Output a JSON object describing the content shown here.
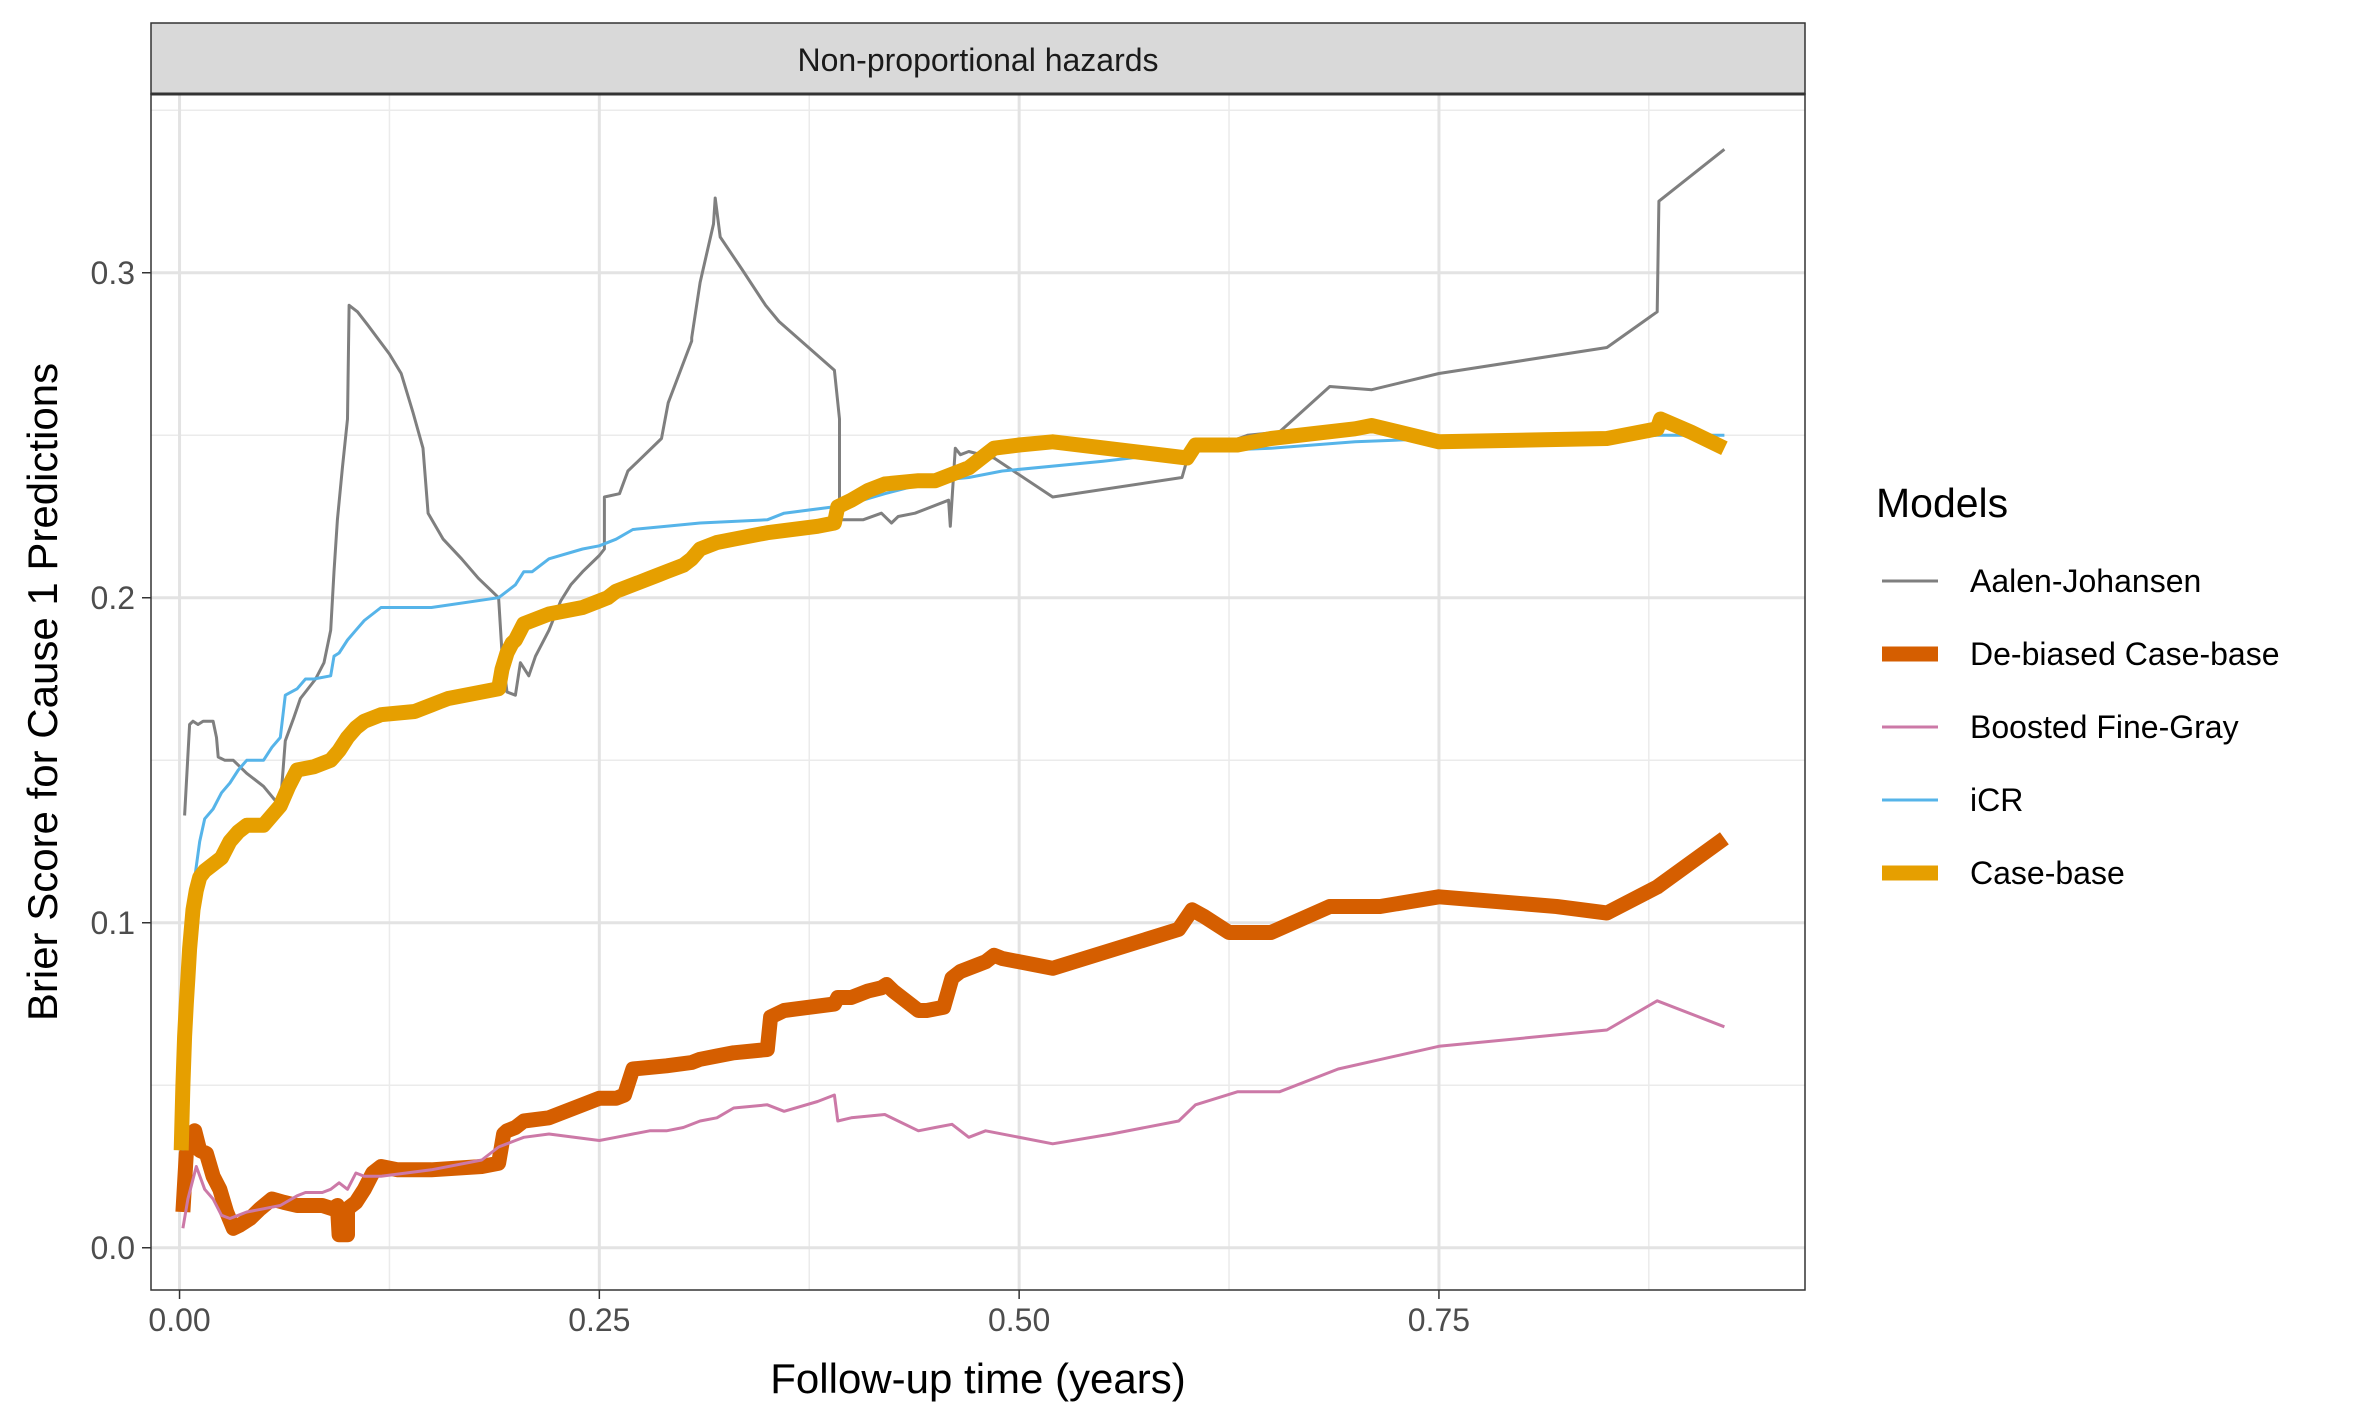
{
  "chart_data": {
    "type": "line",
    "facet_title": "Non-proportional hazards",
    "xlabel": "Follow-up time (years)",
    "ylabel": "Brier Score for Cause 1 Predictions",
    "xlim": [
      -0.017,
      0.968
    ],
    "ylim": [
      -0.013,
      0.355
    ],
    "x_ticks": [
      {
        "value": 0.0,
        "label": "0.00"
      },
      {
        "value": 0.25,
        "label": "0.25"
      },
      {
        "value": 0.5,
        "label": "0.50"
      },
      {
        "value": 0.75,
        "label": "0.75"
      }
    ],
    "y_ticks": [
      {
        "value": 0.0,
        "label": "0.0"
      },
      {
        "value": 0.1,
        "label": "0.1"
      },
      {
        "value": 0.2,
        "label": "0.2"
      },
      {
        "value": 0.3,
        "label": "0.3"
      }
    ],
    "grid": true,
    "legend": {
      "title": "Models",
      "position": "right"
    },
    "series": [
      {
        "name": "Aalen-Johansen",
        "color": "#7f7f7f",
        "width": 3,
        "x": [
          0.003,
          0.006,
          0.008,
          0.011,
          0.014,
          0.02,
          0.022,
          0.023,
          0.027,
          0.032,
          0.04,
          0.05,
          0.058,
          0.06,
          0.063,
          0.068,
          0.072,
          0.081,
          0.086,
          0.09,
          0.092,
          0.094,
          0.097,
          0.1,
          0.101,
          0.106,
          0.112,
          0.125,
          0.132,
          0.139,
          0.145,
          0.148,
          0.157,
          0.168,
          0.178,
          0.19,
          0.192,
          0.195,
          0.2,
          0.203,
          0.208,
          0.212,
          0.22,
          0.227,
          0.233,
          0.24,
          0.25,
          0.253,
          0.253,
          0.262,
          0.267,
          0.273,
          0.287,
          0.291,
          0.305,
          0.305,
          0.31,
          0.318,
          0.319,
          0.322,
          0.335,
          0.349,
          0.357,
          0.357,
          0.39,
          0.393,
          0.393,
          0.4,
          0.407,
          0.418,
          0.424,
          0.428,
          0.438,
          0.458,
          0.459,
          0.462,
          0.465,
          0.47,
          0.485,
          0.52,
          0.597,
          0.602,
          0.615,
          0.636,
          0.655,
          0.685,
          0.71,
          0.75,
          0.85,
          0.88,
          0.881,
          0.92
        ],
        "y": [
          0.133,
          0.161,
          0.162,
          0.161,
          0.162,
          0.162,
          0.157,
          0.151,
          0.15,
          0.15,
          0.146,
          0.142,
          0.137,
          0.136,
          0.156,
          0.163,
          0.169,
          0.175,
          0.18,
          0.19,
          0.208,
          0.224,
          0.24,
          0.255,
          0.29,
          0.288,
          0.284,
          0.275,
          0.269,
          0.257,
          0.246,
          0.226,
          0.218,
          0.212,
          0.206,
          0.2,
          0.183,
          0.171,
          0.17,
          0.18,
          0.176,
          0.182,
          0.19,
          0.199,
          0.204,
          0.208,
          0.213,
          0.215,
          0.231,
          0.232,
          0.239,
          0.242,
          0.249,
          0.26,
          0.279,
          0.28,
          0.297,
          0.315,
          0.323,
          0.311,
          0.301,
          0.29,
          0.285,
          0.285,
          0.27,
          0.255,
          0.224,
          0.224,
          0.224,
          0.226,
          0.223,
          0.225,
          0.226,
          0.23,
          0.222,
          0.246,
          0.244,
          0.245,
          0.243,
          0.231,
          0.237,
          0.246,
          0.246,
          0.25,
          0.251,
          0.265,
          0.264,
          0.269,
          0.277,
          0.288,
          0.322,
          0.338
        ]
      },
      {
        "name": "De-biased Case-base",
        "color": "#d55e00",
        "width": 15,
        "x": [
          0.002,
          0.004,
          0.006,
          0.009,
          0.012,
          0.016,
          0.02,
          0.024,
          0.028,
          0.032,
          0.036,
          0.042,
          0.048,
          0.055,
          0.062,
          0.07,
          0.078,
          0.085,
          0.091,
          0.094,
          0.095,
          0.1,
          0.1,
          0.105,
          0.11,
          0.115,
          0.12,
          0.13,
          0.15,
          0.18,
          0.19,
          0.193,
          0.195,
          0.2,
          0.205,
          0.22,
          0.23,
          0.24,
          0.25,
          0.26,
          0.265,
          0.27,
          0.29,
          0.305,
          0.31,
          0.32,
          0.33,
          0.35,
          0.352,
          0.36,
          0.39,
          0.392,
          0.4,
          0.405,
          0.41,
          0.418,
          0.421,
          0.425,
          0.43,
          0.44,
          0.445,
          0.455,
          0.46,
          0.465,
          0.47,
          0.475,
          0.48,
          0.485,
          0.49,
          0.51,
          0.52,
          0.595,
          0.603,
          0.61,
          0.625,
          0.65,
          0.685,
          0.715,
          0.75,
          0.82,
          0.85,
          0.88,
          0.92
        ],
        "y": [
          0.011,
          0.029,
          0.032,
          0.036,
          0.03,
          0.029,
          0.022,
          0.018,
          0.011,
          0.006,
          0.007,
          0.009,
          0.012,
          0.015,
          0.014,
          0.013,
          0.013,
          0.013,
          0.012,
          0.013,
          0.004,
          0.004,
          0.012,
          0.014,
          0.018,
          0.023,
          0.025,
          0.024,
          0.024,
          0.025,
          0.026,
          0.035,
          0.036,
          0.037,
          0.039,
          0.04,
          0.042,
          0.044,
          0.046,
          0.046,
          0.047,
          0.055,
          0.056,
          0.057,
          0.058,
          0.059,
          0.06,
          0.061,
          0.071,
          0.073,
          0.075,
          0.077,
          0.077,
          0.078,
          0.079,
          0.08,
          0.081,
          0.079,
          0.077,
          0.073,
          0.073,
          0.074,
          0.083,
          0.085,
          0.086,
          0.087,
          0.088,
          0.09,
          0.089,
          0.087,
          0.086,
          0.098,
          0.104,
          0.102,
          0.097,
          0.097,
          0.105,
          0.105,
          0.108,
          0.105,
          0.103,
          0.111,
          0.126
        ]
      },
      {
        "name": "Boosted Fine-Gray",
        "color": "#cc79a7",
        "width": 3,
        "x": [
          0.002,
          0.005,
          0.01,
          0.015,
          0.02,
          0.025,
          0.03,
          0.035,
          0.04,
          0.05,
          0.06,
          0.07,
          0.075,
          0.08,
          0.085,
          0.09,
          0.095,
          0.1,
          0.105,
          0.11,
          0.12,
          0.15,
          0.18,
          0.19,
          0.2,
          0.205,
          0.22,
          0.25,
          0.26,
          0.27,
          0.28,
          0.29,
          0.3,
          0.31,
          0.32,
          0.33,
          0.35,
          0.36,
          0.38,
          0.39,
          0.392,
          0.4,
          0.42,
          0.44,
          0.45,
          0.46,
          0.47,
          0.48,
          0.52,
          0.555,
          0.595,
          0.605,
          0.63,
          0.655,
          0.69,
          0.75,
          0.85,
          0.88,
          0.92
        ],
        "y": [
          0.006,
          0.015,
          0.025,
          0.018,
          0.015,
          0.01,
          0.009,
          0.01,
          0.011,
          0.012,
          0.013,
          0.016,
          0.017,
          0.017,
          0.017,
          0.018,
          0.02,
          0.018,
          0.023,
          0.022,
          0.022,
          0.024,
          0.027,
          0.031,
          0.033,
          0.034,
          0.035,
          0.033,
          0.034,
          0.035,
          0.036,
          0.036,
          0.037,
          0.039,
          0.04,
          0.043,
          0.044,
          0.042,
          0.045,
          0.047,
          0.039,
          0.04,
          0.041,
          0.036,
          0.037,
          0.038,
          0.034,
          0.036,
          0.032,
          0.035,
          0.039,
          0.044,
          0.048,
          0.048,
          0.055,
          0.062,
          0.067,
          0.076,
          0.068
        ]
      },
      {
        "name": "iCR",
        "color": "#56b4e9",
        "width": 3,
        "x": [
          0.002,
          0.005,
          0.008,
          0.012,
          0.015,
          0.02,
          0.025,
          0.03,
          0.035,
          0.04,
          0.05,
          0.055,
          0.06,
          0.063,
          0.07,
          0.075,
          0.08,
          0.09,
          0.092,
          0.095,
          0.1,
          0.105,
          0.11,
          0.12,
          0.15,
          0.19,
          0.2,
          0.205,
          0.21,
          0.22,
          0.24,
          0.25,
          0.26,
          0.27,
          0.29,
          0.31,
          0.35,
          0.36,
          0.39,
          0.4,
          0.42,
          0.45,
          0.47,
          0.49,
          0.55,
          0.6,
          0.65,
          0.7,
          0.75,
          0.8,
          0.85,
          0.88,
          0.92
        ],
        "y": [
          0.03,
          0.08,
          0.11,
          0.125,
          0.132,
          0.135,
          0.14,
          0.143,
          0.147,
          0.15,
          0.15,
          0.154,
          0.157,
          0.17,
          0.172,
          0.175,
          0.175,
          0.176,
          0.182,
          0.183,
          0.187,
          0.19,
          0.193,
          0.197,
          0.197,
          0.2,
          0.204,
          0.208,
          0.208,
          0.212,
          0.215,
          0.216,
          0.218,
          0.221,
          0.222,
          0.223,
          0.224,
          0.226,
          0.228,
          0.229,
          0.232,
          0.236,
          0.237,
          0.239,
          0.242,
          0.245,
          0.246,
          0.248,
          0.249,
          0.249,
          0.249,
          0.25,
          0.25
        ]
      },
      {
        "name": "Case-base",
        "color": "#e69f00",
        "width": 15,
        "x": [
          0.001,
          0.002,
          0.003,
          0.004,
          0.005,
          0.006,
          0.007,
          0.008,
          0.01,
          0.012,
          0.015,
          0.02,
          0.025,
          0.03,
          0.035,
          0.04,
          0.05,
          0.055,
          0.06,
          0.065,
          0.07,
          0.08,
          0.09,
          0.095,
          0.1,
          0.105,
          0.11,
          0.12,
          0.14,
          0.15,
          0.155,
          0.16,
          0.18,
          0.19,
          0.192,
          0.195,
          0.198,
          0.2,
          0.205,
          0.21,
          0.22,
          0.24,
          0.25,
          0.255,
          0.26,
          0.265,
          0.27,
          0.28,
          0.285,
          0.29,
          0.3,
          0.305,
          0.31,
          0.32,
          0.33,
          0.35,
          0.38,
          0.39,
          0.392,
          0.4,
          0.41,
          0.42,
          0.44,
          0.45,
          0.46,
          0.47,
          0.485,
          0.5,
          0.52,
          0.6,
          0.605,
          0.63,
          0.65,
          0.7,
          0.71,
          0.75,
          0.85,
          0.88,
          0.882,
          0.9,
          0.92
        ],
        "y": [
          0.03,
          0.05,
          0.065,
          0.075,
          0.083,
          0.092,
          0.098,
          0.104,
          0.11,
          0.114,
          0.116,
          0.118,
          0.12,
          0.125,
          0.128,
          0.13,
          0.13,
          0.133,
          0.136,
          0.142,
          0.147,
          0.148,
          0.15,
          0.153,
          0.157,
          0.16,
          0.162,
          0.164,
          0.165,
          0.167,
          0.168,
          0.169,
          0.171,
          0.172,
          0.178,
          0.183,
          0.186,
          0.187,
          0.192,
          0.193,
          0.195,
          0.197,
          0.199,
          0.2,
          0.202,
          0.203,
          0.204,
          0.206,
          0.207,
          0.208,
          0.21,
          0.212,
          0.215,
          0.217,
          0.218,
          0.22,
          0.222,
          0.223,
          0.228,
          0.23,
          0.233,
          0.235,
          0.236,
          0.236,
          0.238,
          0.24,
          0.246,
          0.247,
          0.248,
          0.243,
          0.247,
          0.247,
          0.249,
          0.252,
          0.253,
          0.248,
          0.249,
          0.252,
          0.255,
          0.251,
          0.246
        ]
      }
    ]
  }
}
